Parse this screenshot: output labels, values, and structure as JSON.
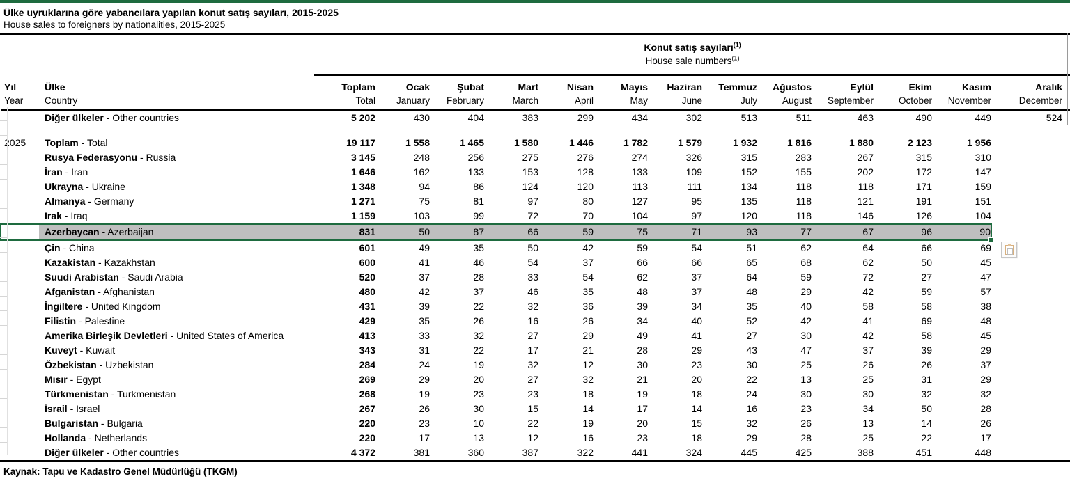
{
  "title": {
    "tr": "Ülke uyruklarına göre yabancılara yapılan konut satış sayıları, 2015-2025",
    "en": "House sales to foreigners by nationalities, 2015-2025"
  },
  "source": "Kaynak: Tapu ve Kadastro Genel Müdürlüğü (TKGM)",
  "colors": {
    "accent_green": "#1e6b3f",
    "selection_fill": "#bfbfbf"
  },
  "icons": {
    "paste_options": "paste-options-icon",
    "fill_handle": "fill-handle"
  },
  "table": {
    "group_header": {
      "tr": "Konut satış sayıları",
      "en": "House sale numbers",
      "footnote": "(1)"
    },
    "col_year": {
      "tr": "Yıl",
      "en": "Year"
    },
    "col_country": {
      "tr": "Ülke",
      "en": "Country"
    },
    "country_separator": " - ",
    "columns": [
      {
        "tr": "Toplam",
        "en": "Total"
      },
      {
        "tr": "Ocak",
        "en": "January"
      },
      {
        "tr": "Şubat",
        "en": "February"
      },
      {
        "tr": "Mart",
        "en": "March"
      },
      {
        "tr": "Nisan",
        "en": "April"
      },
      {
        "tr": "Mayıs",
        "en": "May"
      },
      {
        "tr": "Haziran",
        "en": "June"
      },
      {
        "tr": "Temmuz",
        "en": "July"
      },
      {
        "tr": "Ağustos",
        "en": "August"
      },
      {
        "tr": "Eylül",
        "en": "September"
      },
      {
        "tr": "Ekim",
        "en": "October"
      },
      {
        "tr": "Kasım",
        "en": "November"
      },
      {
        "tr": "Aralık",
        "en": "December"
      }
    ],
    "pre_row": {
      "year": "",
      "tr": "Diğer ülkeler",
      "en": "Other countries",
      "values": [
        "5 202",
        "430",
        "404",
        "383",
        "299",
        "434",
        "302",
        "513",
        "511",
        "463",
        "490",
        "449",
        "524"
      ]
    },
    "year_label": "2025",
    "rows": [
      {
        "year": "2025",
        "tr": "Toplam",
        "en": "Total",
        "bold": true,
        "values": [
          "19 117",
          "1 558",
          "1 465",
          "1 580",
          "1 446",
          "1 782",
          "1 579",
          "1 932",
          "1 816",
          "1 880",
          "2 123",
          "1 956",
          ""
        ]
      },
      {
        "year": "",
        "tr": "Rusya Federasyonu",
        "en": "Russia",
        "values": [
          "3 145",
          "248",
          "256",
          "275",
          "276",
          "274",
          "326",
          "315",
          "283",
          "267",
          "315",
          "310",
          ""
        ]
      },
      {
        "year": "",
        "tr": "İran",
        "en": "Iran",
        "values": [
          "1 646",
          "162",
          "133",
          "153",
          "128",
          "133",
          "109",
          "152",
          "155",
          "202",
          "172",
          "147",
          ""
        ]
      },
      {
        "year": "",
        "tr": "Ukrayna",
        "en": "Ukraine",
        "values": [
          "1 348",
          "94",
          "86",
          "124",
          "120",
          "113",
          "111",
          "134",
          "118",
          "118",
          "171",
          "159",
          ""
        ]
      },
      {
        "year": "",
        "tr": "Almanya",
        "en": "Germany",
        "values": [
          "1 271",
          "75",
          "81",
          "97",
          "80",
          "127",
          "95",
          "135",
          "118",
          "121",
          "191",
          "151",
          ""
        ]
      },
      {
        "year": "",
        "tr": "Irak",
        "en": "Iraq",
        "values": [
          "1 159",
          "103",
          "99",
          "72",
          "70",
          "104",
          "97",
          "120",
          "118",
          "146",
          "126",
          "104",
          ""
        ]
      },
      {
        "year": "",
        "tr": "Azerbaycan",
        "en": "Azerbaijan",
        "sel": true,
        "values": [
          "831",
          "50",
          "87",
          "66",
          "59",
          "75",
          "71",
          "93",
          "77",
          "67",
          "96",
          "90",
          ""
        ]
      },
      {
        "year": "",
        "tr": "Çin",
        "en": "China",
        "values": [
          "601",
          "49",
          "35",
          "50",
          "42",
          "59",
          "54",
          "51",
          "62",
          "64",
          "66",
          "69",
          ""
        ]
      },
      {
        "year": "",
        "tr": "Kazakistan",
        "en": "Kazakhstan",
        "values": [
          "600",
          "41",
          "46",
          "54",
          "37",
          "66",
          "66",
          "65",
          "68",
          "62",
          "50",
          "45",
          ""
        ]
      },
      {
        "year": "",
        "tr": "Suudi Arabistan",
        "en": "Saudi Arabia",
        "values": [
          "520",
          "37",
          "28",
          "33",
          "54",
          "62",
          "37",
          "64",
          "59",
          "72",
          "27",
          "47",
          ""
        ]
      },
      {
        "year": "",
        "tr": "Afganistan",
        "en": "Afghanistan",
        "values": [
          "480",
          "42",
          "37",
          "46",
          "35",
          "48",
          "37",
          "48",
          "29",
          "42",
          "59",
          "57",
          ""
        ]
      },
      {
        "year": "",
        "tr": "İngiltere",
        "en": "United Kingdom",
        "values": [
          "431",
          "39",
          "22",
          "32",
          "36",
          "39",
          "34",
          "35",
          "40",
          "58",
          "58",
          "38",
          ""
        ]
      },
      {
        "year": "",
        "tr": "Filistin",
        "en": "Palestine",
        "values": [
          "429",
          "35",
          "26",
          "16",
          "26",
          "34",
          "40",
          "52",
          "42",
          "41",
          "69",
          "48",
          ""
        ]
      },
      {
        "year": "",
        "tr": "Amerika Birleşik Devletleri",
        "en": "United States of America",
        "values": [
          "413",
          "33",
          "32",
          "27",
          "29",
          "49",
          "41",
          "27",
          "30",
          "42",
          "58",
          "45",
          ""
        ]
      },
      {
        "year": "",
        "tr": "Kuveyt",
        "en": "Kuwait",
        "values": [
          "343",
          "31",
          "22",
          "17",
          "21",
          "28",
          "29",
          "43",
          "47",
          "37",
          "39",
          "29",
          ""
        ]
      },
      {
        "year": "",
        "tr": "Özbekistan",
        "en": "Uzbekistan",
        "values": [
          "284",
          "24",
          "19",
          "32",
          "12",
          "30",
          "23",
          "30",
          "25",
          "26",
          "26",
          "37",
          ""
        ]
      },
      {
        "year": "",
        "tr": "Mısır",
        "en": "Egypt",
        "values": [
          "269",
          "29",
          "20",
          "27",
          "32",
          "21",
          "20",
          "22",
          "13",
          "25",
          "31",
          "29",
          ""
        ]
      },
      {
        "year": "",
        "tr": "Türkmenistan",
        "en": "Turkmenistan",
        "values": [
          "268",
          "19",
          "23",
          "23",
          "18",
          "19",
          "18",
          "24",
          "30",
          "30",
          "32",
          "32",
          ""
        ]
      },
      {
        "year": "",
        "tr": "İsrail",
        "en": "Israel",
        "values": [
          "267",
          "26",
          "30",
          "15",
          "14",
          "17",
          "14",
          "16",
          "23",
          "34",
          "50",
          "28",
          ""
        ]
      },
      {
        "year": "",
        "tr": "Bulgaristan",
        "en": "Bulgaria",
        "values": [
          "220",
          "23",
          "10",
          "22",
          "19",
          "20",
          "15",
          "32",
          "26",
          "13",
          "14",
          "26",
          ""
        ]
      },
      {
        "year": "",
        "tr": "Hollanda",
        "en": "Netherlands",
        "values": [
          "220",
          "17",
          "13",
          "12",
          "16",
          "23",
          "18",
          "29",
          "28",
          "25",
          "22",
          "17",
          ""
        ]
      },
      {
        "year": "",
        "tr": "Diğer ülkeler",
        "en": "Other countries",
        "values": [
          "4 372",
          "381",
          "360",
          "387",
          "322",
          "441",
          "324",
          "445",
          "425",
          "388",
          "451",
          "448",
          ""
        ]
      }
    ],
    "highlight_row_index": 6
  }
}
